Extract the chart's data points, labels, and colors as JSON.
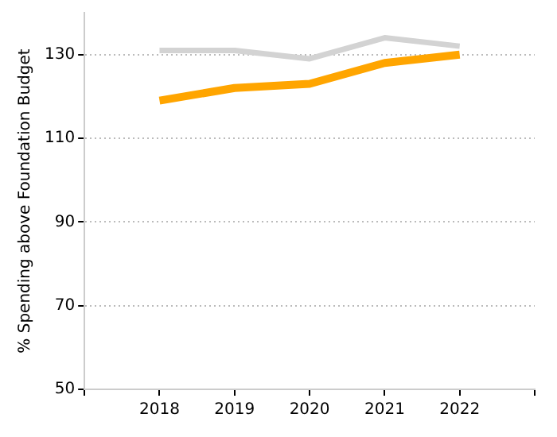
{
  "chart_data": {
    "type": "line",
    "ylabel": "% Spending above Foundation Budget",
    "x": [
      2018,
      2019,
      2020,
      2021,
      2022
    ],
    "series": [
      {
        "color": "#d3d3d3",
        "values": [
          131,
          131,
          129,
          134,
          132
        ]
      },
      {
        "color": "#ffa500",
        "values": [
          119,
          122,
          123,
          128,
          130
        ]
      }
    ],
    "xlim": [
      2017,
      2023
    ],
    "xticks": [
      {
        "value": 2017,
        "label": null
      },
      2018,
      2019,
      2020,
      2021,
      2022,
      {
        "value": 2023,
        "label": null
      }
    ],
    "ylim": [
      50,
      140
    ],
    "yticks": [
      50,
      70,
      90,
      110,
      130
    ],
    "grid": "y",
    "legend": false,
    "marker": "none",
    "line_style": "solid"
  }
}
